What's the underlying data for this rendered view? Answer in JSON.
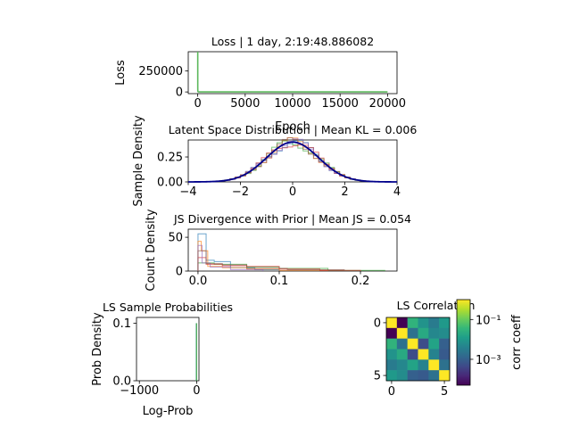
{
  "chart_data": [
    {
      "type": "line",
      "title": "Loss | 1 day, 2:19:48.886082",
      "xlabel": "Epoch",
      "ylabel": "Loss",
      "xlim": [
        -1000,
        21000
      ],
      "ylim": [
        -20000,
        480000
      ],
      "xticks": [
        0,
        5000,
        10000,
        15000,
        20000
      ],
      "yticks": [
        0,
        250000
      ],
      "xtick_labels": [
        "0",
        "5000",
        "10000",
        "15000",
        "20000"
      ],
      "ytick_labels": [
        "0",
        "250000"
      ],
      "series": [
        {
          "color": "#5cb85c",
          "x": [
            0,
            1,
            2,
            3,
            10,
            50,
            200,
            500,
            1000,
            20000
          ],
          "y": [
            480000,
            300000,
            100000,
            40000,
            8000,
            2000,
            800,
            500,
            300,
            200
          ]
        }
      ]
    },
    {
      "type": "histogram",
      "title": "Latent Space Distribution | Mean KL = 0.006",
      "xlabel": "",
      "ylabel": "Sample Density",
      "xlim": [
        -4,
        4
      ],
      "ylim": [
        0,
        0.42
      ],
      "xticks": [
        -4,
        -2,
        0,
        2,
        4
      ],
      "yticks": [
        0,
        0.25
      ],
      "xtick_labels": [
        "−4",
        "−2",
        "0",
        "2",
        "4"
      ],
      "ytick_labels": [
        "0.00",
        "0.25"
      ],
      "prior": {
        "type": "standard-normal",
        "color": "#00008b"
      },
      "series_colors": [
        "#1f77b4",
        "#ff7f0e",
        "#2ca02c",
        "#d62728",
        "#9467bd",
        "#8c564b"
      ]
    },
    {
      "type": "histogram",
      "title": "JS Divergence with Prior | Mean JS = 0.054",
      "xlabel": "",
      "ylabel": "Count Density",
      "xlim": [
        -0.012,
        0.245
      ],
      "ylim": [
        0,
        62
      ],
      "xticks": [
        0.0,
        0.1,
        0.2
      ],
      "yticks": [
        0,
        50
      ],
      "xtick_labels": [
        "0.0",
        "0.1",
        "0.2"
      ],
      "ytick_labels": [
        "0",
        "50"
      ],
      "series": [
        {
          "color": "#1f77b4",
          "edges": [
            0,
            0.01,
            0.02,
            0.04,
            0.07,
            0.1
          ],
          "counts": [
            55,
            16,
            14,
            5,
            2
          ]
        },
        {
          "color": "#ff7f0e",
          "edges": [
            0,
            0.004,
            0.012,
            0.03,
            0.06,
            0.1,
            0.16
          ],
          "counts": [
            44,
            30,
            7,
            5,
            3,
            1
          ]
        },
        {
          "color": "#2ca02c",
          "edges": [
            0,
            0.02,
            0.06,
            0.1,
            0.16,
            0.23
          ],
          "counts": [
            12,
            10,
            6,
            4,
            1
          ]
        },
        {
          "color": "#d62728",
          "edges": [
            0,
            0.01,
            0.03,
            0.06,
            0.1,
            0.15,
            0.2
          ],
          "counts": [
            20,
            10,
            8,
            7,
            3,
            1
          ]
        },
        {
          "color": "#9467bd",
          "edges": [
            0,
            0.005,
            0.015,
            0.04,
            0.08
          ],
          "counts": [
            38,
            12,
            6,
            2
          ]
        },
        {
          "color": "#8c564b",
          "edges": [
            0,
            0.01,
            0.03,
            0.06,
            0.11,
            0.18
          ],
          "counts": [
            30,
            11,
            9,
            4,
            2
          ]
        }
      ]
    },
    {
      "type": "histogram",
      "title": "LS Sample Probabilities",
      "xlabel": "Log-Prob",
      "ylabel": "Prob Density",
      "xlim": [
        -1050,
        40
      ],
      "ylim": [
        0,
        0.11
      ],
      "xticks": [
        -1000,
        0
      ],
      "yticks": [
        0,
        0.1
      ],
      "xtick_labels": [
        "−1000",
        "0"
      ],
      "ytick_labels": [
        "0.0",
        "0.1"
      ],
      "bars": [
        {
          "x": -5,
          "y": 0.1,
          "color": "#1f77b4"
        },
        {
          "x": -3,
          "y": 0.1,
          "color": "#2ca02c"
        }
      ]
    },
    {
      "type": "heatmap",
      "title": "LS Correlation",
      "xticks": [
        0,
        5
      ],
      "yticks": [
        0,
        5
      ],
      "xtick_labels": [
        "0",
        "5"
      ],
      "ytick_labels": [
        "0",
        "5"
      ],
      "colormap": "viridis",
      "colorbar": {
        "label": "corr coeff",
        "scale": "log",
        "ticks": [
          "10⁻¹",
          "10⁻³"
        ],
        "tick_values": [
          0.1,
          0.001
        ],
        "range": [
          5e-05,
          1
        ]
      },
      "values": [
        [
          1.0,
          5e-05,
          0.03,
          0.008,
          0.003,
          0.01
        ],
        [
          5e-05,
          1.0,
          0.002,
          0.02,
          0.005,
          0.006
        ],
        [
          0.03,
          0.002,
          1.0,
          0.0005,
          0.015,
          0.001
        ],
        [
          0.008,
          0.02,
          0.0005,
          1.0,
          0.004,
          0.0008
        ],
        [
          0.003,
          0.005,
          0.015,
          0.004,
          1.0,
          0.002
        ],
        [
          0.01,
          0.006,
          0.001,
          0.0008,
          0.002,
          1.0
        ]
      ]
    }
  ]
}
